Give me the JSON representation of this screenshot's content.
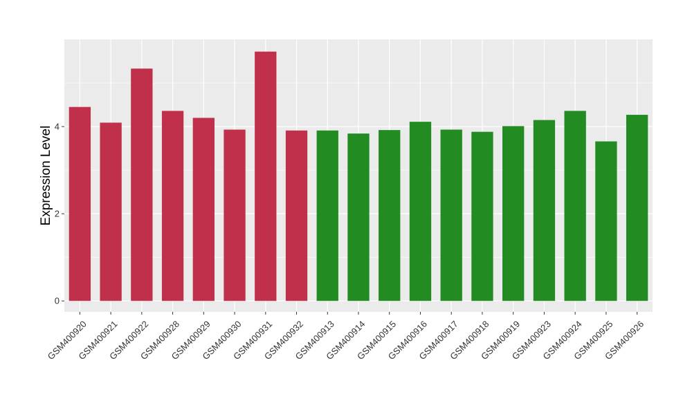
{
  "chart_data": {
    "type": "bar",
    "title": "",
    "xlabel": "",
    "ylabel": "Expression Level",
    "ylim": [
      -0.25,
      6.0
    ],
    "yticks": [
      0,
      2,
      4
    ],
    "grid": true,
    "legend": "none",
    "categories": [
      "GSM400920",
      "GSM400921",
      "GSM400922",
      "GSM400928",
      "GSM400929",
      "GSM400930",
      "GSM400931",
      "GSM400932",
      "GSM400913",
      "GSM400914",
      "GSM400915",
      "GSM400916",
      "GSM400917",
      "GSM400918",
      "GSM400919",
      "GSM400923",
      "GSM400924",
      "GSM400925",
      "GSM400926"
    ],
    "values": [
      4.45,
      4.09,
      5.33,
      4.36,
      4.2,
      3.93,
      5.72,
      3.91,
      3.91,
      3.84,
      3.92,
      4.11,
      3.93,
      3.88,
      4.01,
      4.15,
      4.36,
      3.66,
      4.27
    ],
    "bar_colors": [
      "#c1304a",
      "#c1304a",
      "#c1304a",
      "#c1304a",
      "#c1304a",
      "#c1304a",
      "#c1304a",
      "#c1304a",
      "#228b22",
      "#228b22",
      "#228b22",
      "#228b22",
      "#228b22",
      "#228b22",
      "#228b22",
      "#228b22",
      "#228b22",
      "#228b22",
      "#228b22"
    ],
    "panel_background": "#ebebeb",
    "grid_color": "#ffffff"
  }
}
